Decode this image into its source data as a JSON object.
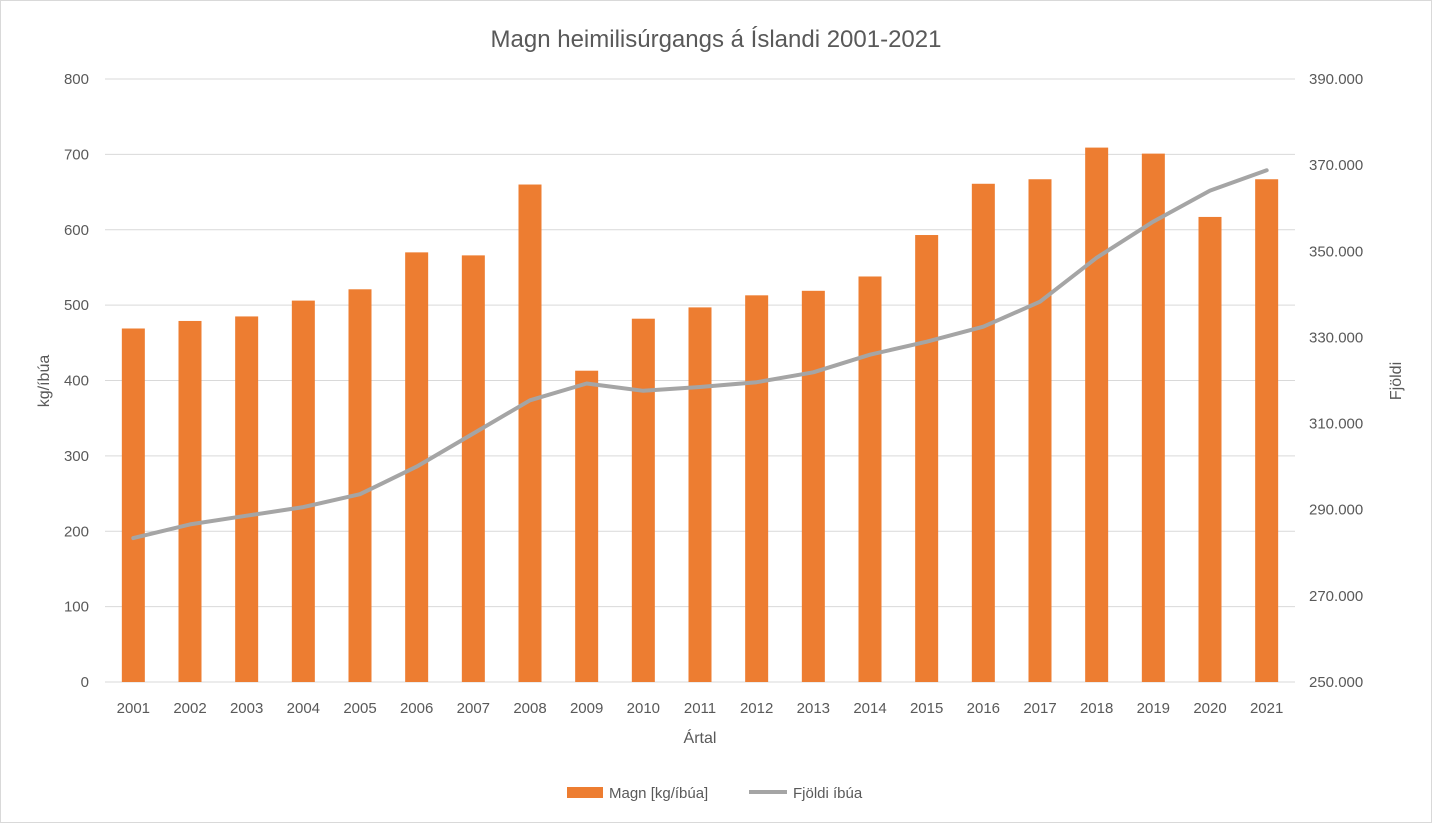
{
  "chart_data": {
    "type": "bar",
    "title": "Magn heimilisúrgangs á Íslandi 2001-2021",
    "xlabel": "Ártal",
    "ylabel": "kg/íbúa",
    "y2label": "Fjöldi",
    "categories": [
      "2001",
      "2002",
      "2003",
      "2004",
      "2005",
      "2006",
      "2007",
      "2008",
      "2009",
      "2010",
      "2011",
      "2012",
      "2013",
      "2014",
      "2015",
      "2016",
      "2017",
      "2018",
      "2019",
      "2020",
      "2021"
    ],
    "ylim": [
      0,
      800
    ],
    "yticks": [
      "0",
      "100",
      "200",
      "300",
      "400",
      "500",
      "600",
      "700",
      "800"
    ],
    "y2lim": [
      250000,
      390000
    ],
    "y2ticks": [
      "250.000",
      "270.000",
      "290.000",
      "310.000",
      "330.000",
      "350.000",
      "370.000",
      "390.000"
    ],
    "grid": true,
    "legend_position": "bottom",
    "series": [
      {
        "name": "Magn [kg/íbúa]",
        "type": "bar",
        "axis": "left",
        "color": "#ed7d31",
        "values": [
          469,
          479,
          485,
          506,
          521,
          570,
          566,
          660,
          413,
          482,
          497,
          513,
          519,
          538,
          593,
          661,
          667,
          709,
          701,
          617,
          667
        ]
      },
      {
        "name": "Fjöldi íbúa",
        "type": "line",
        "axis": "right",
        "color": "#a5a5a5",
        "values": [
          283400,
          286600,
          288600,
          290600,
          293600,
          300000,
          307700,
          315400,
          319300,
          317600,
          318500,
          319600,
          321900,
          326000,
          329000,
          332500,
          338300,
          348500,
          356900,
          364100,
          368800
        ]
      }
    ]
  }
}
